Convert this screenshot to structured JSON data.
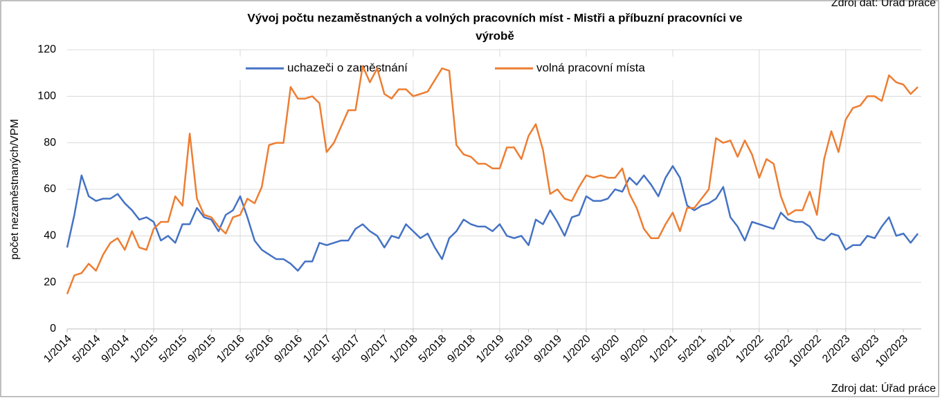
{
  "chart_data": {
    "type": "line",
    "title": [
      "Vývoj počtu nezaměstnaných a volných pracovních míst - Mistři a příbuzní pracovníci ve",
      "výrobě"
    ],
    "y_label": "počet nezaměstnaných/VPM",
    "source": "Zdroj dat: Úřad práce",
    "legend": "top",
    "grid": true,
    "ylim": [
      0,
      120
    ],
    "yticks": [
      0,
      20,
      40,
      60,
      80,
      100,
      120
    ],
    "categories": [
      "1/2014",
      null,
      null,
      null,
      "5/2014",
      null,
      null,
      null,
      "9/2014",
      null,
      null,
      null,
      "1/2015",
      null,
      null,
      null,
      "5/2015",
      null,
      null,
      null,
      "9/2015",
      null,
      null,
      null,
      "1/2016",
      null,
      null,
      null,
      "5/2016",
      null,
      null,
      null,
      "9/2016",
      null,
      null,
      null,
      "1/2017",
      null,
      null,
      null,
      "5/2017",
      null,
      null,
      null,
      "9/2017",
      null,
      null,
      null,
      "1/2018",
      null,
      null,
      null,
      "5/2018",
      null,
      null,
      null,
      "9/2018",
      null,
      null,
      null,
      "1/2019",
      null,
      null,
      null,
      "5/2019",
      null,
      null,
      null,
      "9/2019",
      null,
      null,
      null,
      "1/2020",
      null,
      null,
      null,
      "5/2020",
      null,
      null,
      null,
      "9/2020",
      null,
      null,
      null,
      "1/2021",
      null,
      null,
      null,
      "5/2021",
      null,
      null,
      null,
      "9/2021",
      null,
      null,
      null,
      "1/2022",
      null,
      null,
      null,
      "5/2022",
      null,
      null,
      null,
      "10/2022",
      null,
      null,
      null,
      "2/2023",
      null,
      null,
      null,
      "6/2023",
      null,
      null,
      null,
      "10/2023",
      null,
      null
    ],
    "series": [
      {
        "name": "uchazeči o zaměstnání",
        "color": "#4472c4",
        "values": [
          35,
          49,
          66,
          57,
          55,
          56,
          56,
          58,
          54,
          51,
          47,
          48,
          46,
          38,
          40,
          37,
          45,
          45,
          52,
          48,
          47,
          42,
          49,
          51,
          57,
          48,
          38,
          34,
          32,
          30,
          30,
          28,
          25,
          29,
          29,
          37,
          36,
          37,
          38,
          38,
          43,
          45,
          42,
          40,
          35,
          40,
          39,
          45,
          42,
          39,
          41,
          35,
          30,
          39,
          42,
          47,
          45,
          44,
          44,
          42,
          45,
          40,
          39,
          40,
          36,
          47,
          45,
          51,
          46,
          40,
          48,
          49,
          57,
          55,
          55,
          56,
          60,
          59,
          65,
          62,
          66,
          62,
          57,
          65,
          70,
          65,
          53,
          51,
          53,
          54,
          56,
          61,
          48,
          44,
          38,
          46,
          45,
          44,
          43,
          50,
          47,
          46,
          46,
          44,
          39,
          38,
          41,
          40,
          34,
          36,
          36,
          40,
          39,
          44,
          48,
          40,
          41,
          37,
          41
        ]
      },
      {
        "name": "volná pracovní místa",
        "color": "#ed7d31",
        "values": [
          15,
          23,
          24,
          28,
          25,
          32,
          37,
          39,
          34,
          42,
          35,
          34,
          43,
          46,
          46,
          57,
          53,
          84,
          56,
          49,
          48,
          44,
          41,
          48,
          49,
          56,
          54,
          61,
          79,
          80,
          80,
          104,
          99,
          99,
          100,
          97,
          76,
          80,
          87,
          94,
          94,
          113,
          106,
          112,
          101,
          99,
          103,
          103,
          100,
          101,
          102,
          107,
          112,
          111,
          79,
          75,
          74,
          71,
          71,
          69,
          69,
          78,
          78,
          73,
          83,
          88,
          77,
          58,
          60,
          56,
          55,
          61,
          66,
          65,
          66,
          65,
          65,
          69,
          58,
          52,
          43,
          39,
          39,
          45,
          50,
          42,
          52,
          52,
          56,
          60,
          82,
          80,
          81,
          74,
          81,
          75,
          65,
          73,
          71,
          57,
          49,
          51,
          51,
          59,
          49,
          73,
          85,
          76,
          90,
          95,
          96,
          100,
          100,
          98,
          109,
          106,
          105,
          101,
          104
        ]
      }
    ]
  }
}
